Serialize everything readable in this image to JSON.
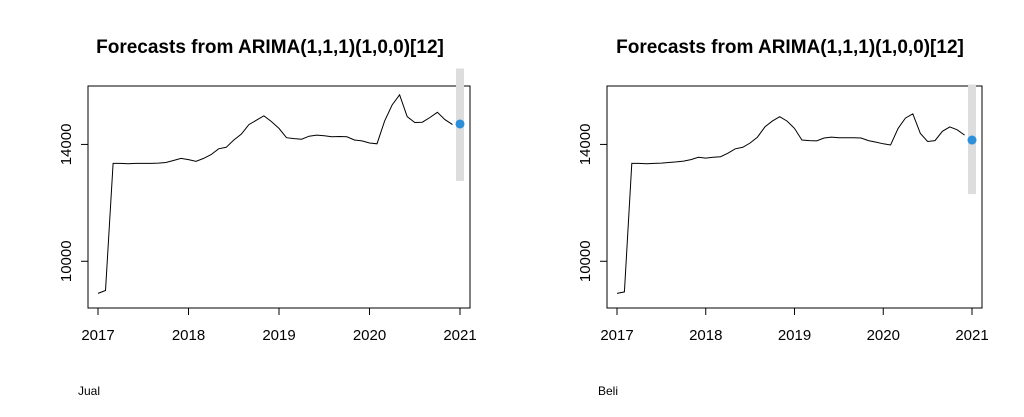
{
  "chart_data": [
    {
      "type": "line",
      "title": "Forecasts from ARIMA(1,1,1)(1,0,0)[12]",
      "caption": "Jual",
      "xlabel": "",
      "ylabel": "",
      "xlim": [
        2017,
        2021
      ],
      "ylim": [
        8400,
        16000
      ],
      "x_ticks": [
        2017,
        2018,
        2019,
        2020,
        2021
      ],
      "x_tick_labels": [
        "2017",
        "2018",
        "2019",
        "2020",
        "2021"
      ],
      "y_ticks": [
        10000,
        14000
      ],
      "y_tick_labels": [
        "10000",
        "14000"
      ],
      "grid": false,
      "legend": "none",
      "series": [
        {
          "values": [
            [
              2017.0,
              8900
            ],
            [
              2017.083,
              9000
            ],
            [
              2017.167,
              13350
            ],
            [
              2017.25,
              13350
            ],
            [
              2017.333,
              13340
            ],
            [
              2017.417,
              13350
            ],
            [
              2017.5,
              13350
            ],
            [
              2017.583,
              13350
            ],
            [
              2017.667,
              13360
            ],
            [
              2017.75,
              13380
            ],
            [
              2017.833,
              13450
            ],
            [
              2017.917,
              13520
            ],
            [
              2018.0,
              13480
            ],
            [
              2018.083,
              13420
            ],
            [
              2018.167,
              13520
            ],
            [
              2018.25,
              13650
            ],
            [
              2018.333,
              13850
            ],
            [
              2018.417,
              13900
            ],
            [
              2018.5,
              14150
            ],
            [
              2018.583,
              14350
            ],
            [
              2018.667,
              14680
            ],
            [
              2018.75,
              14830
            ],
            [
              2018.833,
              14980
            ],
            [
              2018.917,
              14780
            ],
            [
              2019.0,
              14550
            ],
            [
              2019.083,
              14230
            ],
            [
              2019.167,
              14200
            ],
            [
              2019.25,
              14180
            ],
            [
              2019.333,
              14280
            ],
            [
              2019.417,
              14320
            ],
            [
              2019.5,
              14300
            ],
            [
              2019.583,
              14260
            ],
            [
              2019.667,
              14270
            ],
            [
              2019.75,
              14260
            ],
            [
              2019.833,
              14150
            ],
            [
              2019.917,
              14120
            ],
            [
              2020.0,
              14050
            ],
            [
              2020.083,
              14020
            ],
            [
              2020.167,
              14800
            ],
            [
              2020.25,
              15350
            ],
            [
              2020.333,
              15700
            ],
            [
              2020.417,
              14950
            ],
            [
              2020.5,
              14750
            ],
            [
              2020.583,
              14760
            ],
            [
              2020.667,
              14920
            ],
            [
              2020.75,
              15100
            ],
            [
              2020.833,
              14850
            ],
            [
              2020.917,
              14680
            ]
          ],
          "color": "#000000"
        }
      ],
      "forecast": {
        "x": 2021.0,
        "point": 14700,
        "lower": 12750,
        "upper": 16600,
        "point_color": "#2b8fd9",
        "band_color": "#dddddd"
      }
    },
    {
      "type": "line",
      "title": "Forecasts from ARIMA(1,1,1)(1,0,0)[12]",
      "caption": "Beli",
      "xlabel": "",
      "ylabel": "",
      "xlim": [
        2017,
        2021
      ],
      "ylim": [
        8400,
        16000
      ],
      "x_ticks": [
        2017,
        2018,
        2019,
        2020,
        2021
      ],
      "x_tick_labels": [
        "2017",
        "2018",
        "2019",
        "2020",
        "2021"
      ],
      "y_ticks": [
        10000,
        14000
      ],
      "y_tick_labels": [
        "10000",
        "14000"
      ],
      "grid": false,
      "legend": "none",
      "series": [
        {
          "values": [
            [
              2017.0,
              8900
            ],
            [
              2017.083,
              8950
            ],
            [
              2017.167,
              13350
            ],
            [
              2017.25,
              13350
            ],
            [
              2017.333,
              13340
            ],
            [
              2017.417,
              13350
            ],
            [
              2017.5,
              13360
            ],
            [
              2017.583,
              13380
            ],
            [
              2017.667,
              13400
            ],
            [
              2017.75,
              13430
            ],
            [
              2017.833,
              13480
            ],
            [
              2017.917,
              13560
            ],
            [
              2018.0,
              13530
            ],
            [
              2018.083,
              13560
            ],
            [
              2018.167,
              13580
            ],
            [
              2018.25,
              13700
            ],
            [
              2018.333,
              13850
            ],
            [
              2018.417,
              13900
            ],
            [
              2018.5,
              14050
            ],
            [
              2018.583,
              14250
            ],
            [
              2018.667,
              14600
            ],
            [
              2018.75,
              14800
            ],
            [
              2018.833,
              14950
            ],
            [
              2018.917,
              14800
            ],
            [
              2019.0,
              14550
            ],
            [
              2019.083,
              14150
            ],
            [
              2019.167,
              14130
            ],
            [
              2019.25,
              14120
            ],
            [
              2019.333,
              14220
            ],
            [
              2019.417,
              14250
            ],
            [
              2019.5,
              14230
            ],
            [
              2019.583,
              14230
            ],
            [
              2019.667,
              14230
            ],
            [
              2019.75,
              14220
            ],
            [
              2019.833,
              14130
            ],
            [
              2019.917,
              14080
            ],
            [
              2020.0,
              14020
            ],
            [
              2020.083,
              13980
            ],
            [
              2020.167,
              14550
            ],
            [
              2020.25,
              14900
            ],
            [
              2020.333,
              15050
            ],
            [
              2020.417,
              14380
            ],
            [
              2020.5,
              14100
            ],
            [
              2020.583,
              14130
            ],
            [
              2020.667,
              14450
            ],
            [
              2020.75,
              14600
            ],
            [
              2020.833,
              14500
            ],
            [
              2020.917,
              14320
            ]
          ],
          "color": "#000000"
        }
      ],
      "forecast": {
        "x": 2021.0,
        "point": 14150,
        "lower": 12300,
        "upper": 16050,
        "point_color": "#2b8fd9",
        "band_color": "#dddddd"
      }
    }
  ]
}
